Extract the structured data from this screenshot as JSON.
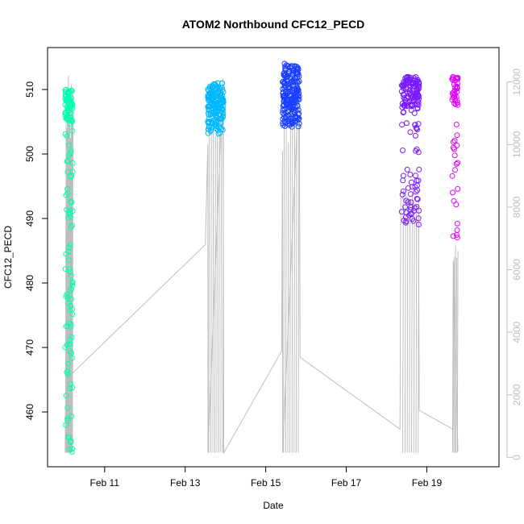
{
  "colors": {
    "frame": "#000000",
    "altitude_line": "#bebebe",
    "right_axis": "#bdbdbd",
    "seg1": "#00ffb0",
    "seg2": "#00b8ff",
    "seg3": "#1a3fff",
    "seg4": "#7a1aff",
    "seg5": "#e100ff"
  },
  "chart_data": {
    "type": "scatter",
    "title": "ATOM2 Northbound CFC12_PECD",
    "xlabel": "Date",
    "ylabel": "CFC12_PECD",
    "xlim": [
      "2017-02-09 14:00",
      "2017-02-20 19:00"
    ],
    "ylim": [
      451.5,
      516.5
    ],
    "y2lim": [
      -300,
      13100
    ],
    "x_ticks": [
      {
        "date": "2017-02-11",
        "label": "Feb 11"
      },
      {
        "date": "2017-02-13",
        "label": "Feb 13"
      },
      {
        "date": "2017-02-15",
        "label": "Feb 15"
      },
      {
        "date": "2017-02-17",
        "label": "Feb 17"
      },
      {
        "date": "2017-02-19",
        "label": "Feb 19"
      }
    ],
    "y_ticks": [
      460,
      470,
      480,
      490,
      500,
      510
    ],
    "y2_ticks": [
      0,
      2000,
      4000,
      6000,
      8000,
      10000,
      12000
    ],
    "series": [
      {
        "type": "scatter",
        "color_key": "seg1",
        "t_range": [
          "2017-02-10 00:30",
          "2017-02-10 05:00"
        ],
        "y_pattern": "spread",
        "y_range": [
          453,
          510
        ],
        "count": 150
      },
      {
        "type": "scatter",
        "color_key": "seg2",
        "t_range": [
          "2017-02-13 13:30",
          "2017-02-13 23:00"
        ],
        "y_pattern": "dense",
        "y_range": [
          503,
          511
        ],
        "count": 170
      },
      {
        "type": "scatter",
        "color_key": "seg3",
        "t_range": [
          "2017-02-15 10:00",
          "2017-02-15 20:00"
        ],
        "y_pattern": "dense",
        "y_range": [
          504,
          514
        ],
        "count": 220
      },
      {
        "type": "scatter",
        "color_key": "seg4",
        "t_range": [
          "2017-02-18 09:00",
          "2017-02-18 19:30"
        ],
        "y_pattern": "bimodal",
        "y_range": [
          489,
          512
        ],
        "count": 170
      },
      {
        "type": "scatter",
        "color_key": "seg5",
        "t_range": [
          "2017-02-19 15:00",
          "2017-02-19 18:30"
        ],
        "y_pattern": "bimodal",
        "y_range": [
          487,
          512
        ],
        "count": 55
      }
    ],
    "altitude_trace": {
      "axis": "right",
      "points": [
        [
          "2017-02-10 00:30",
          150
        ],
        [
          "2017-02-10 02:00",
          11500
        ],
        [
          "2017-02-10 04:30",
          11700
        ],
        [
          "2017-02-10 05:00",
          2700
        ],
        [
          "2017-02-13 12:00",
          6800
        ],
        [
          "2017-02-13 13:30",
          10000
        ],
        [
          "2017-02-13 13:35",
          150
        ],
        [
          "2017-02-13 22:30",
          12100
        ],
        [
          "2017-02-13 23:00",
          150
        ],
        [
          "2017-02-15 09:30",
          3400
        ],
        [
          "2017-02-15 10:00",
          9800
        ],
        [
          "2017-02-15 10:05",
          150
        ],
        [
          "2017-02-15 20:00",
          12200
        ],
        [
          "2017-02-15 20:30",
          3200
        ],
        [
          "2017-02-18 08:00",
          900
        ],
        [
          "2017-02-18 08:30",
          8300
        ],
        [
          "2017-02-18 19:00",
          8000
        ],
        [
          "2017-02-18 19:30",
          1500
        ],
        [
          "2017-02-19 15:30",
          900
        ],
        [
          "2017-02-19 16:00",
          6200
        ],
        [
          "2017-02-19 18:30",
          200
        ]
      ]
    }
  }
}
